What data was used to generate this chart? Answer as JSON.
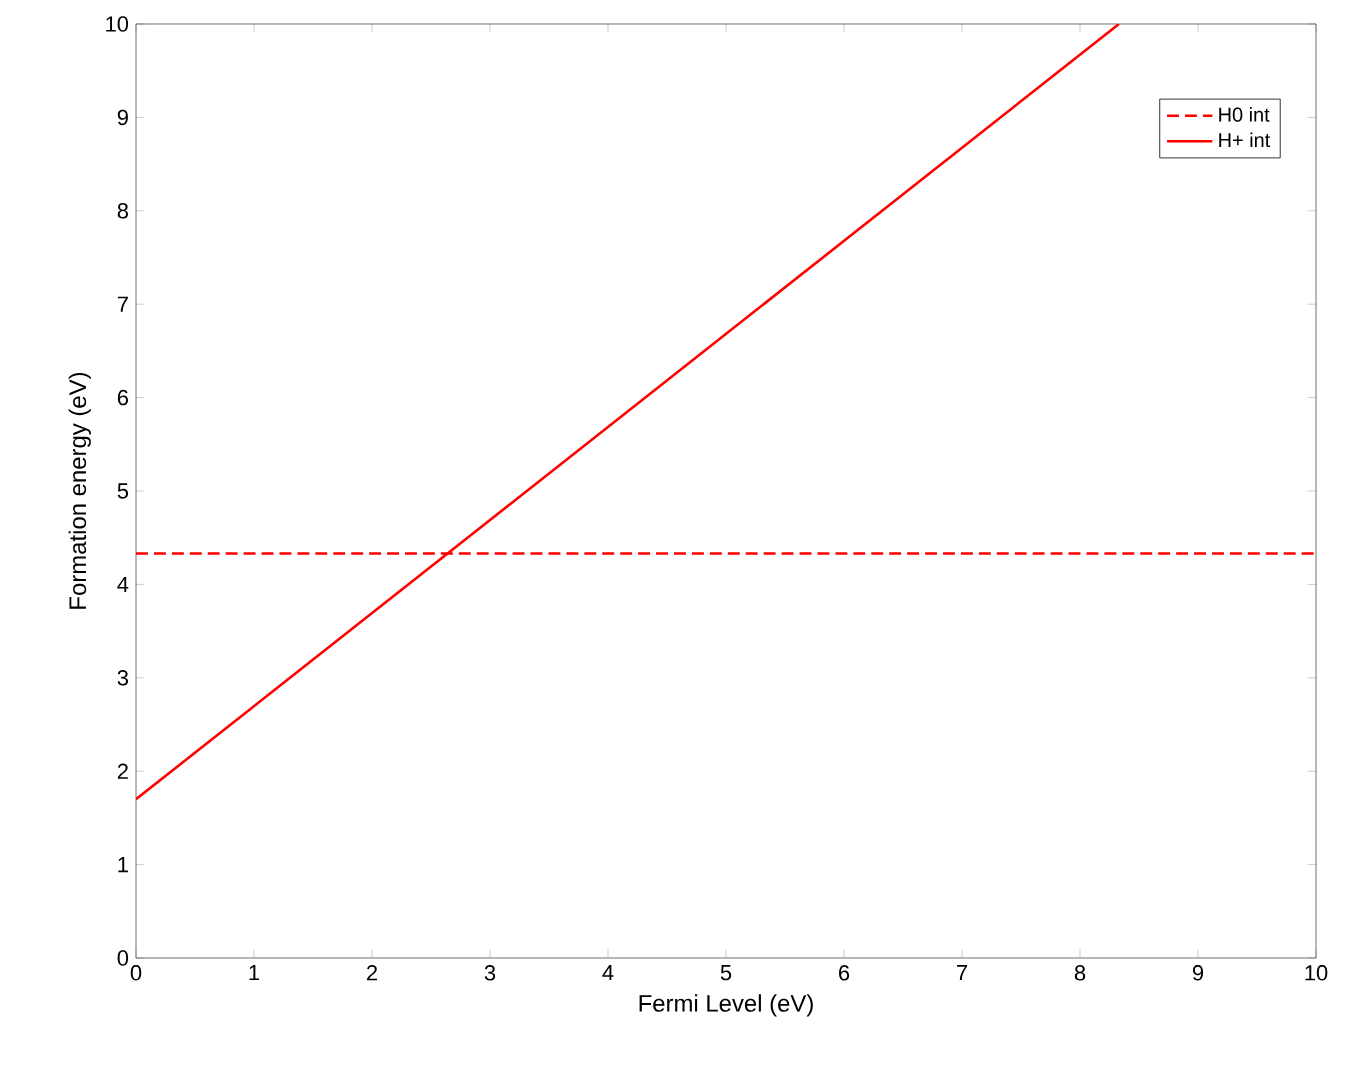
{
  "chart_data": {
    "type": "line",
    "xlabel": "Fermi Level (eV)",
    "ylabel": "Formation energy (eV)",
    "xlim": [
      0,
      10
    ],
    "ylim": [
      0,
      10
    ],
    "xticks": [
      0,
      1,
      2,
      3,
      4,
      5,
      6,
      7,
      8,
      9,
      10
    ],
    "yticks": [
      0,
      1,
      2,
      3,
      4,
      5,
      6,
      7,
      8,
      9,
      10
    ],
    "grid": false,
    "legend": "top right",
    "marker": "none",
    "series": [
      {
        "name": "H0 int",
        "color": "#ff0000",
        "line_style": "dashed",
        "x": [
          0,
          10
        ],
        "values": [
          4.33,
          4.33
        ]
      },
      {
        "name": "H+ int",
        "color": "#ff0000",
        "line_style": "solid",
        "x": [
          0,
          8.33
        ],
        "values": [
          1.7,
          10
        ]
      }
    ]
  }
}
